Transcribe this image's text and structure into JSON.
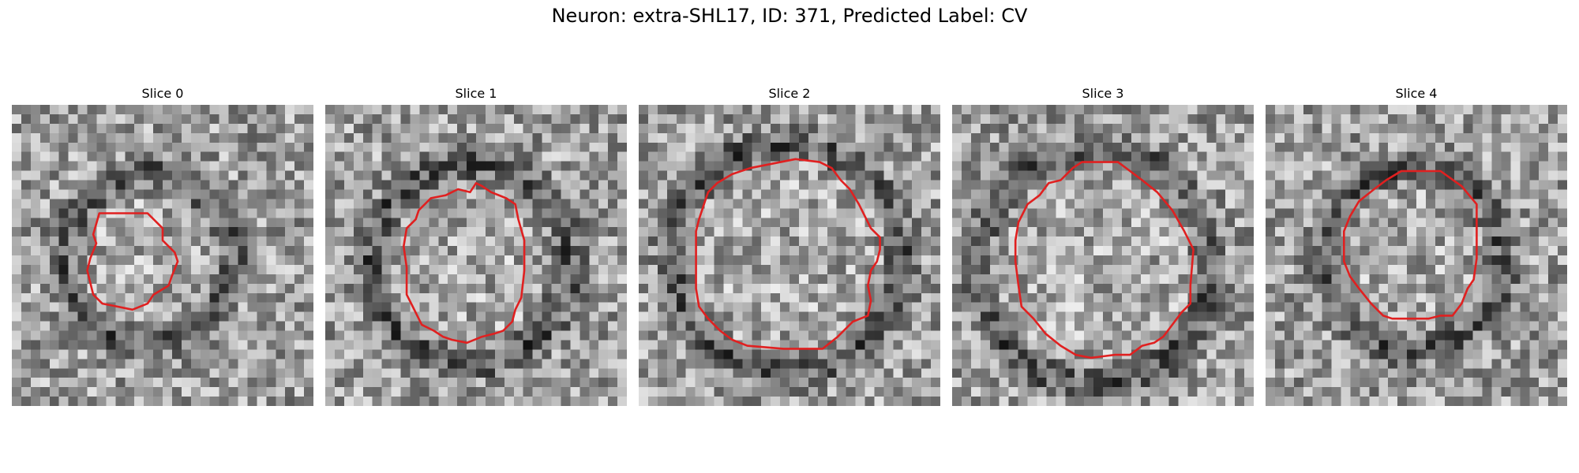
{
  "figure": {
    "title": "Neuron: extra-SHL17, ID: 371, Predicted Label: CV"
  },
  "panels": [
    {
      "title": "Slice 0",
      "seed": 11,
      "ring_radius": 0.28,
      "center": [
        0.45,
        0.51
      ],
      "contour": [
        [
          0.29,
          0.36
        ],
        [
          0.45,
          0.36
        ],
        [
          0.5,
          0.41
        ],
        [
          0.5,
          0.45
        ],
        [
          0.54,
          0.49
        ],
        [
          0.55,
          0.52
        ],
        [
          0.53,
          0.57
        ],
        [
          0.52,
          0.6
        ],
        [
          0.47,
          0.63
        ],
        [
          0.45,
          0.66
        ],
        [
          0.4,
          0.68
        ],
        [
          0.35,
          0.67
        ],
        [
          0.3,
          0.66
        ],
        [
          0.27,
          0.63
        ],
        [
          0.26,
          0.59
        ],
        [
          0.25,
          0.55
        ],
        [
          0.26,
          0.51
        ],
        [
          0.28,
          0.46
        ],
        [
          0.27,
          0.43
        ]
      ]
    },
    {
      "title": "Slice 1",
      "seed": 23,
      "ring_radius": 0.33,
      "center": [
        0.48,
        0.53
      ],
      "contour": [
        [
          0.48,
          0.29
        ],
        [
          0.5,
          0.26
        ],
        [
          0.52,
          0.27
        ],
        [
          0.55,
          0.29
        ],
        [
          0.6,
          0.31
        ],
        [
          0.63,
          0.33
        ],
        [
          0.64,
          0.38
        ],
        [
          0.66,
          0.45
        ],
        [
          0.66,
          0.55
        ],
        [
          0.65,
          0.64
        ],
        [
          0.63,
          0.68
        ],
        [
          0.62,
          0.72
        ],
        [
          0.59,
          0.75
        ],
        [
          0.56,
          0.76
        ],
        [
          0.52,
          0.77
        ],
        [
          0.47,
          0.79
        ],
        [
          0.42,
          0.78
        ],
        [
          0.39,
          0.77
        ],
        [
          0.36,
          0.75
        ],
        [
          0.32,
          0.73
        ],
        [
          0.29,
          0.67
        ],
        [
          0.27,
          0.63
        ],
        [
          0.27,
          0.54
        ],
        [
          0.26,
          0.47
        ],
        [
          0.27,
          0.41
        ],
        [
          0.3,
          0.38
        ],
        [
          0.31,
          0.35
        ],
        [
          0.33,
          0.33
        ],
        [
          0.35,
          0.31
        ],
        [
          0.4,
          0.3
        ],
        [
          0.44,
          0.28
        ]
      ]
    },
    {
      "title": "Slice 2",
      "seed": 37,
      "ring_radius": 0.38,
      "center": [
        0.49,
        0.51
      ],
      "contour": [
        [
          0.37,
          0.21
        ],
        [
          0.52,
          0.18
        ],
        [
          0.6,
          0.19
        ],
        [
          0.64,
          0.21
        ],
        [
          0.67,
          0.25
        ],
        [
          0.7,
          0.28
        ],
        [
          0.73,
          0.33
        ],
        [
          0.75,
          0.37
        ],
        [
          0.77,
          0.41
        ],
        [
          0.8,
          0.44
        ],
        [
          0.8,
          0.48
        ],
        [
          0.79,
          0.52
        ],
        [
          0.77,
          0.55
        ],
        [
          0.76,
          0.6
        ],
        [
          0.77,
          0.65
        ],
        [
          0.76,
          0.7
        ],
        [
          0.71,
          0.72
        ],
        [
          0.66,
          0.77
        ],
        [
          0.61,
          0.81
        ],
        [
          0.48,
          0.81
        ],
        [
          0.36,
          0.8
        ],
        [
          0.31,
          0.78
        ],
        [
          0.27,
          0.75
        ],
        [
          0.23,
          0.71
        ],
        [
          0.2,
          0.67
        ],
        [
          0.19,
          0.61
        ],
        [
          0.19,
          0.52
        ],
        [
          0.19,
          0.42
        ],
        [
          0.2,
          0.38
        ],
        [
          0.22,
          0.32
        ],
        [
          0.23,
          0.29
        ],
        [
          0.26,
          0.26
        ],
        [
          0.31,
          0.23
        ]
      ]
    },
    {
      "title": "Slice 3",
      "seed": 49,
      "ring_radius": 0.39,
      "center": [
        0.47,
        0.54
      ],
      "contour": [
        [
          0.43,
          0.19
        ],
        [
          0.55,
          0.19
        ],
        [
          0.63,
          0.25
        ],
        [
          0.68,
          0.29
        ],
        [
          0.73,
          0.35
        ],
        [
          0.77,
          0.42
        ],
        [
          0.8,
          0.48
        ],
        [
          0.79,
          0.6
        ],
        [
          0.79,
          0.66
        ],
        [
          0.76,
          0.69
        ],
        [
          0.73,
          0.73
        ],
        [
          0.7,
          0.77
        ],
        [
          0.67,
          0.79
        ],
        [
          0.63,
          0.8
        ],
        [
          0.59,
          0.83
        ],
        [
          0.54,
          0.83
        ],
        [
          0.46,
          0.84
        ],
        [
          0.41,
          0.83
        ],
        [
          0.36,
          0.8
        ],
        [
          0.31,
          0.76
        ],
        [
          0.27,
          0.71
        ],
        [
          0.23,
          0.67
        ],
        [
          0.22,
          0.6
        ],
        [
          0.21,
          0.52
        ],
        [
          0.21,
          0.45
        ],
        [
          0.22,
          0.39
        ],
        [
          0.25,
          0.33
        ],
        [
          0.29,
          0.3
        ],
        [
          0.32,
          0.26
        ],
        [
          0.36,
          0.25
        ],
        [
          0.4,
          0.21
        ]
      ]
    },
    {
      "title": "Slice 4",
      "seed": 61,
      "ring_radius": 0.3,
      "center": [
        0.49,
        0.51
      ],
      "contour": [
        [
          0.45,
          0.22
        ],
        [
          0.58,
          0.22
        ],
        [
          0.65,
          0.27
        ],
        [
          0.7,
          0.33
        ],
        [
          0.7,
          0.51
        ],
        [
          0.69,
          0.58
        ],
        [
          0.67,
          0.61
        ],
        [
          0.65,
          0.66
        ],
        [
          0.62,
          0.7
        ],
        [
          0.58,
          0.7
        ],
        [
          0.54,
          0.71
        ],
        [
          0.42,
          0.71
        ],
        [
          0.39,
          0.7
        ],
        [
          0.35,
          0.66
        ],
        [
          0.31,
          0.61
        ],
        [
          0.28,
          0.57
        ],
        [
          0.26,
          0.52
        ],
        [
          0.26,
          0.42
        ],
        [
          0.28,
          0.37
        ],
        [
          0.31,
          0.32
        ],
        [
          0.36,
          0.28
        ],
        [
          0.4,
          0.25
        ]
      ]
    }
  ],
  "style": {
    "contour_color": "#e02020"
  }
}
